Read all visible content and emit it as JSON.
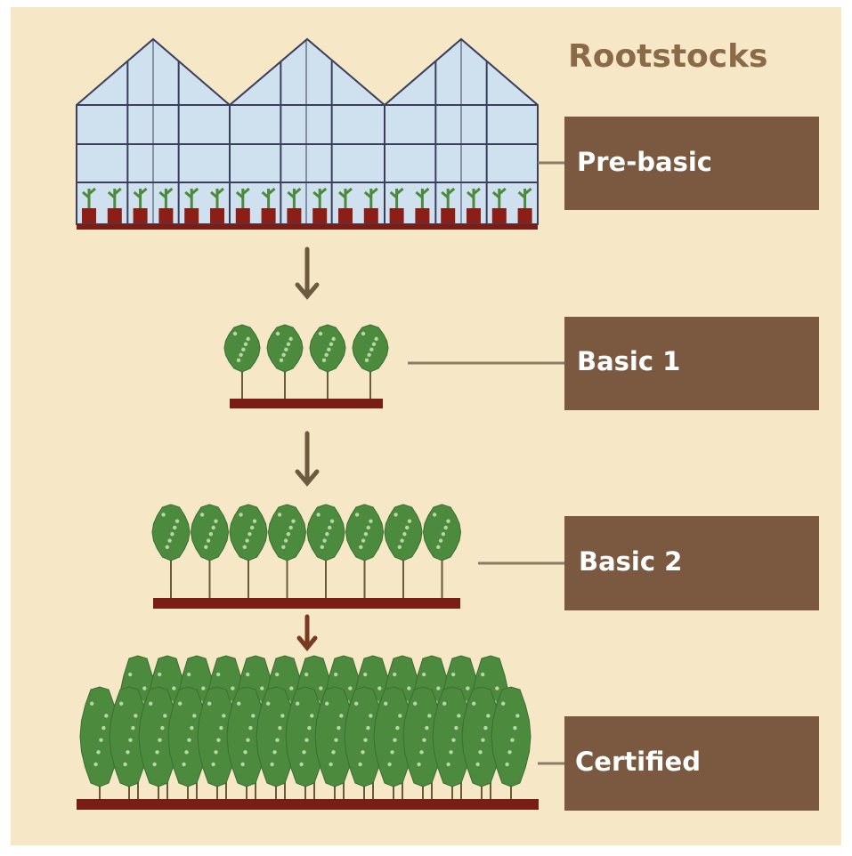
{
  "title": "Rootstocks",
  "stages": [
    {
      "label": "Pre-basic"
    },
    {
      "label": "Basic 1"
    },
    {
      "label": "Basic 2"
    },
    {
      "label": "Certified"
    }
  ]
}
